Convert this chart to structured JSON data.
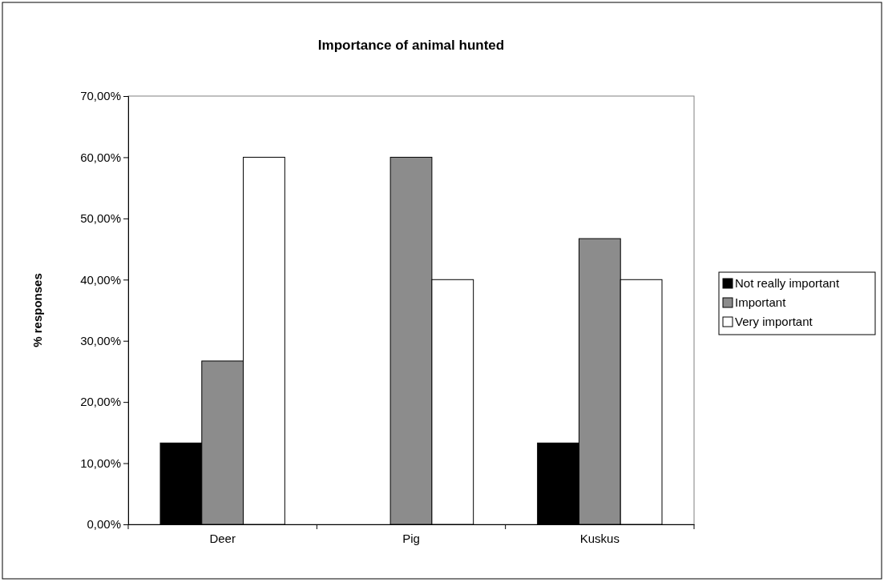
{
  "chart_data": {
    "type": "bar",
    "title": "Importance of animal hunted",
    "ylabel": "% responses",
    "categories": [
      "Deer",
      "Pig",
      "Kuskus"
    ],
    "series": [
      {
        "name": "Not really important",
        "color": "#000000",
        "values": [
          13.3,
          0,
          13.3
        ]
      },
      {
        "name": "Important",
        "color": "#8c8c8c",
        "values": [
          26.7,
          60,
          46.7
        ]
      },
      {
        "name": "Very important",
        "color": "#ffffff",
        "values": [
          60,
          40,
          40
        ]
      }
    ],
    "ylim": [
      0,
      70
    ],
    "yticks": [
      {
        "value": 0,
        "label": "0,00%"
      },
      {
        "value": 10,
        "label": "10,00%"
      },
      {
        "value": 20,
        "label": "20,00%"
      },
      {
        "value": 30,
        "label": "30,00%"
      },
      {
        "value": 40,
        "label": "40,00%"
      },
      {
        "value": 50,
        "label": "50,00%"
      },
      {
        "value": 60,
        "label": "60,00%"
      },
      {
        "value": 70,
        "label": "70,00%"
      }
    ],
    "grid": false,
    "legend": "right"
  }
}
